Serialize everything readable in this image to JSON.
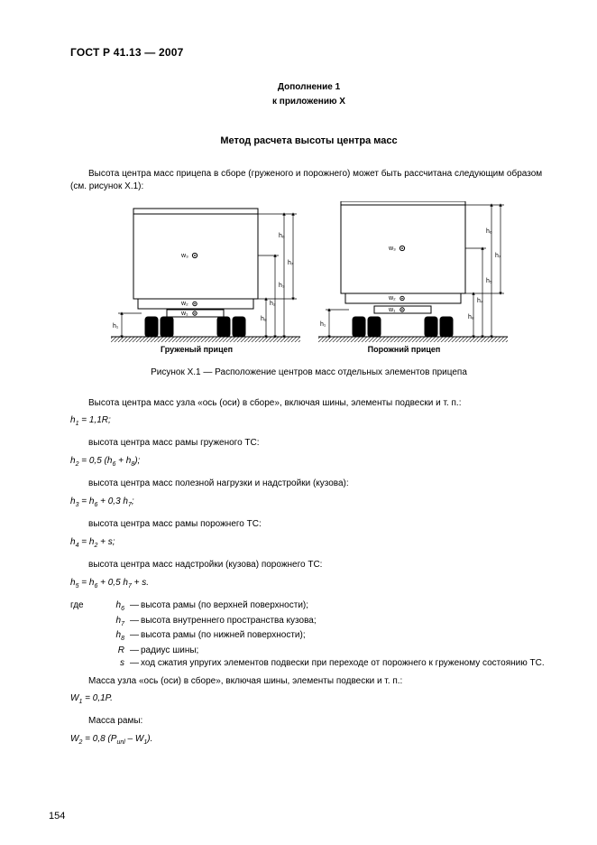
{
  "header": "ГОСТ Р 41.13 — 2007",
  "supplement": "Дополнение 1",
  "annex": "к приложению X",
  "title": "Метод расчета высоты центра масс",
  "intro": "Высота центра масс прицепа в сборе (груженого и порожнего) может быть рассчитана следующим образом (см. рисунок X.1):",
  "figure": {
    "caption": "Рисунок X.1 — Расположение центров масс отдельных элементов прицепа",
    "left_label": "Груженый прицеп",
    "right_label": "Порожний прицеп",
    "colors": {
      "stroke": "#000000",
      "fill_bg": "#ffffff",
      "hatch": "#000000"
    },
    "points": {
      "w1": "w₁",
      "w2": "w₂",
      "w3": "w₃"
    },
    "dims_left": [
      "h₁",
      "h₂",
      "h₃",
      "h₆",
      "h₇",
      "h₈"
    ],
    "dims_right": [
      "h₁",
      "h₄",
      "h₅",
      "h₆",
      "h₇",
      "h₈"
    ]
  },
  "body": [
    {
      "type": "para",
      "text": "Высота центра масс узла «ось (оси) в сборе», включая шины, элементы подвески и т. п.:"
    },
    {
      "type": "formula",
      "html": "<i>h</i><sub>1</sub> = 1,1<i>R</i>;"
    },
    {
      "type": "para",
      "text": "высота центра масс рамы груженого ТС:"
    },
    {
      "type": "formula",
      "html": "<i>h</i><sub>2</sub> = 0,5 (<i>h</i><sub>6</sub> + <i>h</i><sub>8</sub>);"
    },
    {
      "type": "para",
      "text": "высота центра масс полезной нагрузки и надстройки (кузова):"
    },
    {
      "type": "formula",
      "html": "<i>h</i><sub>3</sub> = <i>h</i><sub>6</sub> + 0,3 <i>h</i><sub>7</sub>;"
    },
    {
      "type": "para",
      "text": "высота центра масс рамы порожнего ТС:"
    },
    {
      "type": "formula",
      "html": "<i>h</i><sub>4</sub> = <i>h</i><sub>2</sub> + <i>s</i>;"
    },
    {
      "type": "para",
      "text": "высота центра масс надстройки (кузова) порожнего ТС:"
    },
    {
      "type": "formula",
      "html": "<i>h</i><sub>5</sub> = <i>h</i><sub>6</sub> + 0,5 <i>h</i><sub>7</sub> + <i>s</i>."
    }
  ],
  "where_intro_sym": "h₆",
  "where": [
    {
      "sym": "<i>h</i><sub>6</sub>",
      "txt": "высота рамы (по верхней поверхности);",
      "pre": "где "
    },
    {
      "sym": "<i>h</i><sub>7</sub>",
      "txt": "высота внутреннего пространства кузова;"
    },
    {
      "sym": "<i>h</i><sub>8</sub>",
      "txt": "высота рамы (по нижней поверхности);"
    },
    {
      "sym": "<i>R</i>",
      "txt": "радиус шины;"
    },
    {
      "sym": "<i>s</i>",
      "txt": "ход сжатия упругих элементов подвески при переходе от порожнего к груженому состоянию ТС."
    }
  ],
  "tail": [
    {
      "type": "para",
      "text": "Масса узла «ось (оси) в сборе», включая шины, элементы подвески и т. п.:"
    },
    {
      "type": "formula",
      "html": "<i>W</i><sub>1</sub> = 0,1<i>P</i>."
    },
    {
      "type": "para",
      "text": "Масса рамы:"
    },
    {
      "type": "formula",
      "html": "<i>W</i><sub>2</sub> = 0,8  (<i>P</i><sub>unl</sub>  – <i>W</i><sub>1</sub>)."
    }
  ],
  "page_number": "154"
}
